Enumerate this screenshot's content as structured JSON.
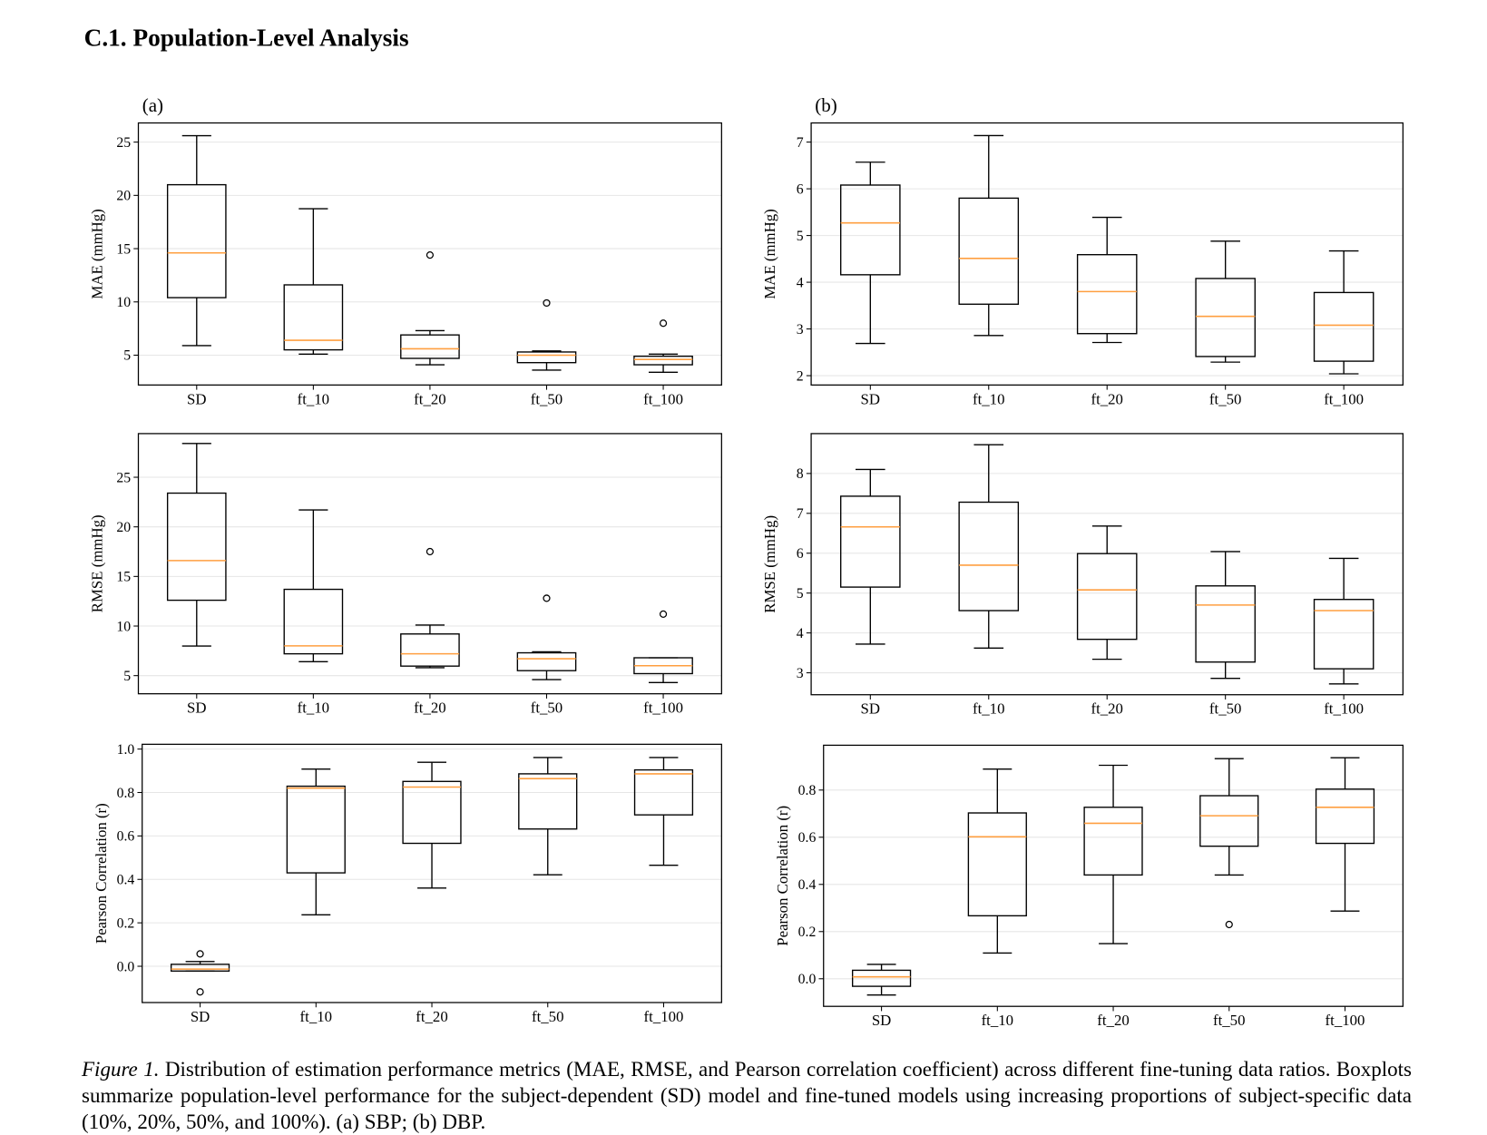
{
  "section_title": "C.1. Population-Level Analysis",
  "chart_data": [
    {
      "type": "box",
      "title": "(a)",
      "ylabel": "MAE (mmHg)",
      "categories": [
        "SD",
        "ft_10",
        "ft_20",
        "ft_50",
        "ft_100"
      ],
      "boxes": [
        {
          "whislo": 5.9,
          "q1": 10.4,
          "med": 14.6,
          "q3": 21.0,
          "whishi": 25.6,
          "fliers": []
        },
        {
          "whislo": 5.1,
          "q1": 5.5,
          "med": 6.4,
          "q3": 11.6,
          "whishi": 18.75,
          "fliers": []
        },
        {
          "whislo": 4.1,
          "q1": 4.7,
          "med": 5.6,
          "q3": 6.9,
          "whishi": 7.3,
          "fliers": [
            14.4
          ]
        },
        {
          "whislo": 3.6,
          "q1": 4.3,
          "med": 5.0,
          "q3": 5.3,
          "whishi": 5.4,
          "fliers": [
            9.9
          ]
        },
        {
          "whislo": 3.4,
          "q1": 4.1,
          "med": 4.6,
          "q3": 4.9,
          "whishi": 5.1,
          "fliers": [
            8.0
          ]
        }
      ],
      "ylim": [
        2.2,
        26.8
      ],
      "yticks": [
        5,
        10,
        15,
        20,
        25
      ],
      "grid": true,
      "box_color": "#000000",
      "median_color": "#ff9f40"
    },
    {
      "type": "box",
      "title": "(b)",
      "ylabel": "MAE (mmHg)",
      "categories": [
        "SD",
        "ft_10",
        "ft_20",
        "ft_50",
        "ft_100"
      ],
      "boxes": [
        {
          "whislo": 2.69,
          "q1": 4.16,
          "med": 5.27,
          "q3": 6.08,
          "whishi": 6.57,
          "fliers": []
        },
        {
          "whislo": 2.86,
          "q1": 3.53,
          "med": 4.51,
          "q3": 5.8,
          "whishi": 7.14,
          "fliers": []
        },
        {
          "whislo": 2.71,
          "q1": 2.9,
          "med": 3.8,
          "q3": 4.59,
          "whishi": 5.39,
          "fliers": []
        },
        {
          "whislo": 2.29,
          "q1": 2.41,
          "med": 3.27,
          "q3": 4.08,
          "whishi": 4.88,
          "fliers": []
        },
        {
          "whislo": 2.04,
          "q1": 2.31,
          "med": 3.08,
          "q3": 3.78,
          "whishi": 4.67,
          "fliers": []
        }
      ],
      "ylim": [
        1.8,
        7.41
      ],
      "yticks": [
        2,
        3,
        4,
        5,
        6,
        7
      ],
      "grid": true,
      "box_color": "#000000",
      "median_color": "#ff9f40"
    },
    {
      "type": "box",
      "ylabel": "RMSE (mmHg)",
      "categories": [
        "SD",
        "ft_10",
        "ft_20",
        "ft_50",
        "ft_100"
      ],
      "boxes": [
        {
          "whislo": 7.98,
          "q1": 12.6,
          "med": 16.6,
          "q3": 23.4,
          "whishi": 28.4,
          "fliers": []
        },
        {
          "whislo": 6.4,
          "q1": 7.2,
          "med": 8.0,
          "q3": 13.7,
          "whishi": 21.7,
          "fliers": []
        },
        {
          "whislo": 5.8,
          "q1": 5.96,
          "med": 7.2,
          "q3": 9.2,
          "whishi": 10.1,
          "fliers": [
            17.5
          ]
        },
        {
          "whislo": 4.6,
          "q1": 5.5,
          "med": 6.7,
          "q3": 7.3,
          "whishi": 7.4,
          "fliers": [
            12.8
          ]
        },
        {
          "whislo": 4.3,
          "q1": 5.2,
          "med": 6.0,
          "q3": 6.8,
          "whishi": 6.8,
          "fliers": [
            11.2
          ]
        }
      ],
      "ylim": [
        3.17,
        29.4
      ],
      "yticks": [
        5,
        10,
        15,
        20,
        25
      ],
      "grid": true,
      "box_color": "#000000",
      "median_color": "#ff9f40"
    },
    {
      "type": "box",
      "ylabel": "RMSE (mmHg)",
      "categories": [
        "SD",
        "ft_10",
        "ft_20",
        "ft_50",
        "ft_100"
      ],
      "boxes": [
        {
          "whislo": 3.72,
          "q1": 5.15,
          "med": 6.66,
          "q3": 7.43,
          "whishi": 8.1,
          "fliers": []
        },
        {
          "whislo": 3.62,
          "q1": 4.56,
          "med": 5.7,
          "q3": 7.28,
          "whishi": 8.72,
          "fliers": []
        },
        {
          "whislo": 3.34,
          "q1": 3.84,
          "med": 5.08,
          "q3": 5.99,
          "whishi": 6.68,
          "fliers": []
        },
        {
          "whislo": 2.86,
          "q1": 3.27,
          "med": 4.7,
          "q3": 5.18,
          "whishi": 6.04,
          "fliers": []
        },
        {
          "whislo": 2.72,
          "q1": 3.1,
          "med": 4.56,
          "q3": 4.84,
          "whishi": 5.87,
          "fliers": []
        }
      ],
      "ylim": [
        2.45,
        9.0
      ],
      "yticks": [
        3,
        4,
        5,
        6,
        7,
        8
      ],
      "grid": true,
      "box_color": "#000000",
      "median_color": "#ff9f40"
    },
    {
      "type": "box",
      "ylabel": "Pearson Correlation (r)",
      "categories": [
        "SD",
        "ft_10",
        "ft_20",
        "ft_50",
        "ft_100"
      ],
      "boxes": [
        {
          "whislo": -0.022,
          "q1": -0.022,
          "med": -0.013,
          "q3": 0.009,
          "whishi": 0.022,
          "fliers": [
            0.057,
            -0.118
          ]
        },
        {
          "whislo": 0.237,
          "q1": 0.43,
          "med": 0.82,
          "q3": 0.829,
          "whishi": 0.908,
          "fliers": []
        },
        {
          "whislo": 0.36,
          "q1": 0.566,
          "med": 0.825,
          "q3": 0.851,
          "whishi": 0.939,
          "fliers": []
        },
        {
          "whislo": 0.421,
          "q1": 0.632,
          "med": 0.864,
          "q3": 0.886,
          "whishi": 0.961,
          "fliers": []
        },
        {
          "whislo": 0.465,
          "q1": 0.697,
          "med": 0.886,
          "q3": 0.904,
          "whishi": 0.961,
          "fliers": []
        }
      ],
      "ylim": [
        -0.167,
        1.022
      ],
      "yticks": [
        {
          "value": 0,
          "label": "0.0"
        },
        0.2,
        0.4,
        0.6,
        0.8,
        {
          "value": 1,
          "label": "1.0"
        }
      ],
      "grid": true,
      "box_color": "#000000",
      "median_color": "#ff9f40"
    },
    {
      "type": "box",
      "ylabel": "Pearson Correlation (r)",
      "categories": [
        "SD",
        "ft_10",
        "ft_20",
        "ft_50",
        "ft_100"
      ],
      "boxes": [
        {
          "whislo": -0.069,
          "q1": -0.032,
          "med": 0.008,
          "q3": 0.036,
          "whishi": 0.061,
          "fliers": []
        },
        {
          "whislo": 0.109,
          "q1": 0.267,
          "med": 0.602,
          "q3": 0.703,
          "whishi": 0.889,
          "fliers": []
        },
        {
          "whislo": 0.149,
          "q1": 0.44,
          "med": 0.659,
          "q3": 0.727,
          "whishi": 0.905,
          "fliers": []
        },
        {
          "whislo": 0.44,
          "q1": 0.562,
          "med": 0.691,
          "q3": 0.776,
          "whishi": 0.933,
          "fliers": [
            0.23
          ]
        },
        {
          "whislo": 0.287,
          "q1": 0.574,
          "med": 0.727,
          "q3": 0.804,
          "whishi": 0.937,
          "fliers": []
        }
      ],
      "ylim": [
        -0.117,
        0.99
      ],
      "yticks": [
        {
          "value": 0,
          "label": "0.0"
        },
        0.2,
        0.4,
        0.6,
        0.8
      ],
      "grid": true,
      "box_color": "#000000",
      "median_color": "#ff9f40"
    }
  ],
  "caption_label": "Figure 1.",
  "caption_text": "Distribution of estimation performance metrics (MAE, RMSE, and Pearson correlation coefficient) across different fine-tuning data ratios.  Boxplots summarize population-level performance for the subject-dependent (SD) model and fine-tuned models using increasing proportions of subject-specific data (10%, 20%, 50%, and 100%). (a) SBP; (b) DBP."
}
